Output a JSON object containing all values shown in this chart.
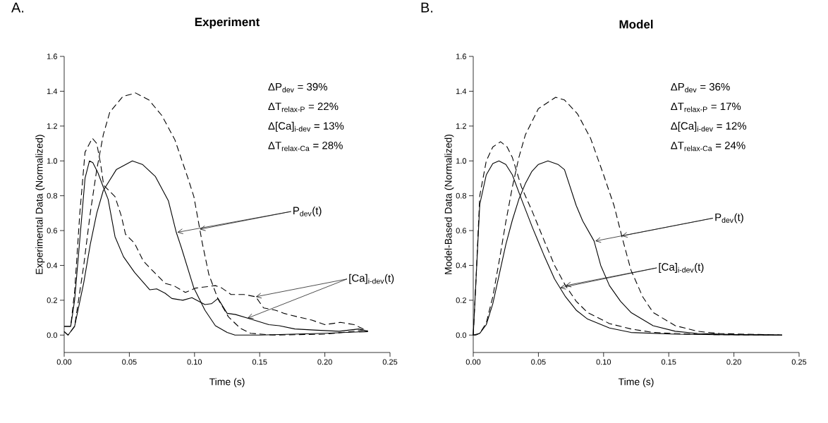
{
  "chart_data": [
    {
      "type": "line",
      "title": "Experiment",
      "xlabel": "Time (s)",
      "ylabel": "Experimental Data (Normalized)",
      "xlim": [
        0,
        0.25
      ],
      "ylim": [
        -0.1,
        1.6
      ],
      "xticks": [
        {
          "value": 0,
          "label": "0.00"
        },
        {
          "value": 0.05,
          "label": "0.05"
        },
        {
          "value": 0.1,
          "label": "0.10"
        },
        {
          "value": 0.15,
          "label": "0.15"
        },
        {
          "value": 0.2,
          "label": "0.20"
        },
        {
          "value": 0.25,
          "label": "0.25"
        }
      ],
      "yticks": [
        {
          "value": 0,
          "label": "0.0"
        },
        {
          "value": 0.2,
          "label": "0.2"
        },
        {
          "value": 0.4,
          "label": "0.4"
        },
        {
          "value": 0.6,
          "label": "0.6"
        },
        {
          "value": 0.8,
          "label": "0.8"
        },
        {
          "value": 1.0,
          "label": "1.0"
        },
        {
          "value": 1.2,
          "label": "1.2"
        },
        {
          "value": 1.4,
          "label": "1.4"
        },
        {
          "value": 1.6,
          "label": "1.6"
        }
      ],
      "series": [
        {
          "color": "#000000",
          "line_style": "solid",
          "x": [
            0,
            0.005,
            0.008,
            0.012,
            0.016,
            0.0194,
            0.022,
            0.026,
            0.03,
            0.0337,
            0.039,
            0.0455,
            0.054,
            0.0657,
            0.071,
            0.0775,
            0.0826,
            0.091,
            0.098,
            0.108,
            0.113,
            0.118,
            0.125,
            0.1315,
            0.143,
            0.157,
            0.165,
            0.177,
            0.194,
            0.211,
            0.226,
            0.233
          ],
          "values": [
            0.05,
            0.05,
            0.2,
            0.55,
            0.9,
            1.0,
            0.99,
            0.93,
            0.85,
            0.78,
            0.565,
            0.45,
            0.36,
            0.26,
            0.265,
            0.24,
            0.21,
            0.2,
            0.215,
            0.175,
            0.18,
            0.21,
            0.125,
            0.118,
            0.092,
            0.06,
            0.054,
            0.035,
            0.028,
            0.022,
            0.035,
            0.022
          ]
        },
        {
          "color": "#000000",
          "line_style": "dashed",
          "x": [
            0,
            0.005,
            0.008,
            0.012,
            0.016,
            0.0216,
            0.025,
            0.028,
            0.0303,
            0.039,
            0.044,
            0.047,
            0.054,
            0.0607,
            0.0674,
            0.0775,
            0.084,
            0.093,
            0.101,
            0.116,
            0.121,
            0.128,
            0.138,
            0.147,
            0.153,
            0.162,
            0.169,
            0.179,
            0.19,
            0.2,
            0.212,
            0.2225,
            0.233
          ],
          "values": [
            0.05,
            0.05,
            0.25,
            0.7,
            1.05,
            1.13,
            1.1,
            0.98,
            0.86,
            0.795,
            0.68,
            0.58,
            0.527,
            0.425,
            0.373,
            0.297,
            0.284,
            0.245,
            0.27,
            0.284,
            0.27,
            0.233,
            0.233,
            0.22,
            0.156,
            0.143,
            0.124,
            0.105,
            0.086,
            0.06,
            0.073,
            0.06,
            0.022
          ]
        },
        {
          "color": "#000000",
          "line_style": "solid",
          "x": [
            0,
            0.003,
            0.008,
            0.015,
            0.02,
            0.025,
            0.03,
            0.04,
            0.0523,
            0.06,
            0.07,
            0.08,
            0.086,
            0.09,
            0.0995,
            0.108,
            0.116,
            0.125,
            0.131,
            0.15,
            0.2,
            0.233
          ],
          "values": [
            0.02,
            0.0,
            0.05,
            0.3,
            0.52,
            0.7,
            0.83,
            0.95,
            1.0,
            0.98,
            0.91,
            0.77,
            0.59,
            0.5,
            0.27,
            0.143,
            0.054,
            0.015,
            0.0,
            0.0,
            0.01,
            0.02
          ]
        },
        {
          "color": "#000000",
          "line_style": "dashed",
          "x": [
            0,
            0.003,
            0.008,
            0.015,
            0.02,
            0.025,
            0.03,
            0.035,
            0.045,
            0.0548,
            0.065,
            0.075,
            0.085,
            0.095,
            0.0995,
            0.106,
            0.111,
            0.118,
            0.126,
            0.135,
            0.143,
            0.16,
            0.2,
            0.233
          ],
          "values": [
            0.02,
            0.0,
            0.05,
            0.4,
            0.7,
            0.95,
            1.15,
            1.28,
            1.37,
            1.39,
            1.35,
            1.26,
            1.12,
            0.9,
            0.795,
            0.527,
            0.348,
            0.207,
            0.105,
            0.04,
            0.01,
            0.0,
            0.005,
            0.03
          ]
        }
      ],
      "annotations": [
        "A.",
        "ΔP$_{dev}$  = 39%",
        "ΔT$_{relax-P}$ = 22%",
        "Δ[Ca]$_{i-dev}$ = 13%",
        "ΔT$_{relax-Ca}$ = 28%",
        {
          "text": "P$_{dev}$(t)",
          "x": 0.0868,
          "y": 0.59
        },
        {
          "text": "[Ca]$_{i-dev}$(t)",
          "x": 0.147,
          "y": 0.22
        }
      ]
    },
    {
      "type": "line",
      "title": "Model",
      "xlabel": "Time (s)",
      "ylabel": "Model-Based Data (Normalized)",
      "xlim": [
        0,
        0.25
      ],
      "ylim": [
        -0.1,
        1.6
      ],
      "xticks": [
        {
          "value": 0,
          "label": "0.00"
        },
        {
          "value": 0.05,
          "label": "0.05"
        },
        {
          "value": 0.1,
          "label": "0.10"
        },
        {
          "value": 0.15,
          "label": "0.15"
        },
        {
          "value": 0.2,
          "label": "0.20"
        },
        {
          "value": 0.25,
          "label": "0.25"
        }
      ],
      "yticks": [
        {
          "value": 0,
          "label": "0.0"
        },
        {
          "value": 0.2,
          "label": "0.2"
        },
        {
          "value": 0.4,
          "label": "0.4"
        },
        {
          "value": 0.6,
          "label": "0.6"
        },
        {
          "value": 0.8,
          "label": "0.8"
        },
        {
          "value": 1.0,
          "label": "1.0"
        },
        {
          "value": 1.2,
          "label": "1.2"
        },
        {
          "value": 1.4,
          "label": "1.4"
        },
        {
          "value": 1.6,
          "label": "1.6"
        }
      ],
      "series": [
        {
          "color": "#000000",
          "line_style": "solid",
          "x": [
            0,
            0.002,
            0.005,
            0.01,
            0.015,
            0.0197,
            0.025,
            0.03,
            0.037,
            0.0455,
            0.054,
            0.0624,
            0.0708,
            0.079,
            0.0877,
            0.1045,
            0.121,
            0.155,
            0.2,
            0.237
          ],
          "values": [
            0,
            0.3,
            0.75,
            0.92,
            0.985,
            1.0,
            0.98,
            0.92,
            0.78,
            0.616,
            0.463,
            0.322,
            0.22,
            0.143,
            0.092,
            0.041,
            0.015,
            0.005,
            0.001,
            0
          ]
        },
        {
          "color": "#000000",
          "line_style": "dashed",
          "x": [
            0,
            0.002,
            0.005,
            0.01,
            0.015,
            0.021,
            0.026,
            0.03,
            0.037,
            0.0455,
            0.054,
            0.0624,
            0.0708,
            0.079,
            0.0877,
            0.1045,
            0.121,
            0.138,
            0.155,
            0.18,
            0.237
          ],
          "values": [
            0,
            0.3,
            0.8,
            1.0,
            1.08,
            1.11,
            1.08,
            1.02,
            0.85,
            0.706,
            0.55,
            0.4,
            0.284,
            0.194,
            0.13,
            0.066,
            0.035,
            0.015,
            0.009,
            0.003,
            0
          ]
        },
        {
          "color": "#000000",
          "line_style": "solid",
          "x": [
            0,
            0.002,
            0.005,
            0.01,
            0.015,
            0.02,
            0.025,
            0.03,
            0.035,
            0.04,
            0.045,
            0.05,
            0.0573,
            0.065,
            0.07,
            0.079,
            0.084,
            0.0927,
            0.0978,
            0.1045,
            0.113,
            0.121,
            0.138,
            0.155,
            0.172,
            0.2,
            0.237
          ],
          "values": [
            0,
            0,
            0.01,
            0.06,
            0.18,
            0.35,
            0.52,
            0.66,
            0.78,
            0.87,
            0.94,
            0.98,
            1.0,
            0.98,
            0.95,
            0.744,
            0.655,
            0.54,
            0.4,
            0.284,
            0.194,
            0.13,
            0.054,
            0.022,
            0.009,
            0.003,
            0
          ]
        },
        {
          "color": "#000000",
          "line_style": "dashed",
          "x": [
            0,
            0.005,
            0.01,
            0.015,
            0.02,
            0.025,
            0.03,
            0.035,
            0.04,
            0.05,
            0.0632,
            0.07,
            0.08,
            0.09,
            0.1,
            0.108,
            0.1146,
            0.121,
            0.13,
            0.138,
            0.155,
            0.172,
            0.189,
            0.237
          ],
          "values": [
            0,
            0.01,
            0.07,
            0.22,
            0.43,
            0.65,
            0.85,
            1.02,
            1.15,
            1.3,
            1.365,
            1.35,
            1.27,
            1.13,
            0.92,
            0.744,
            0.55,
            0.373,
            0.22,
            0.13,
            0.054,
            0.022,
            0.009,
            0
          ]
        }
      ],
      "annotations": [
        "B.",
        "ΔP$_{dev}$  = 36%",
        "ΔT$_{relax-P}$ = 17%",
        "Δ[Ca]$_{i-dev}$ = 12%",
        "ΔT$_{relax-Ca}$ = 24%",
        {
          "text": "P$_{dev}$(t)",
          "x": 0.0936,
          "y": 0.54
        },
        {
          "text": "[Ca]$_{i-dev}$(t)",
          "x": 0.0708,
          "y": 0.284
        }
      ]
    }
  ]
}
